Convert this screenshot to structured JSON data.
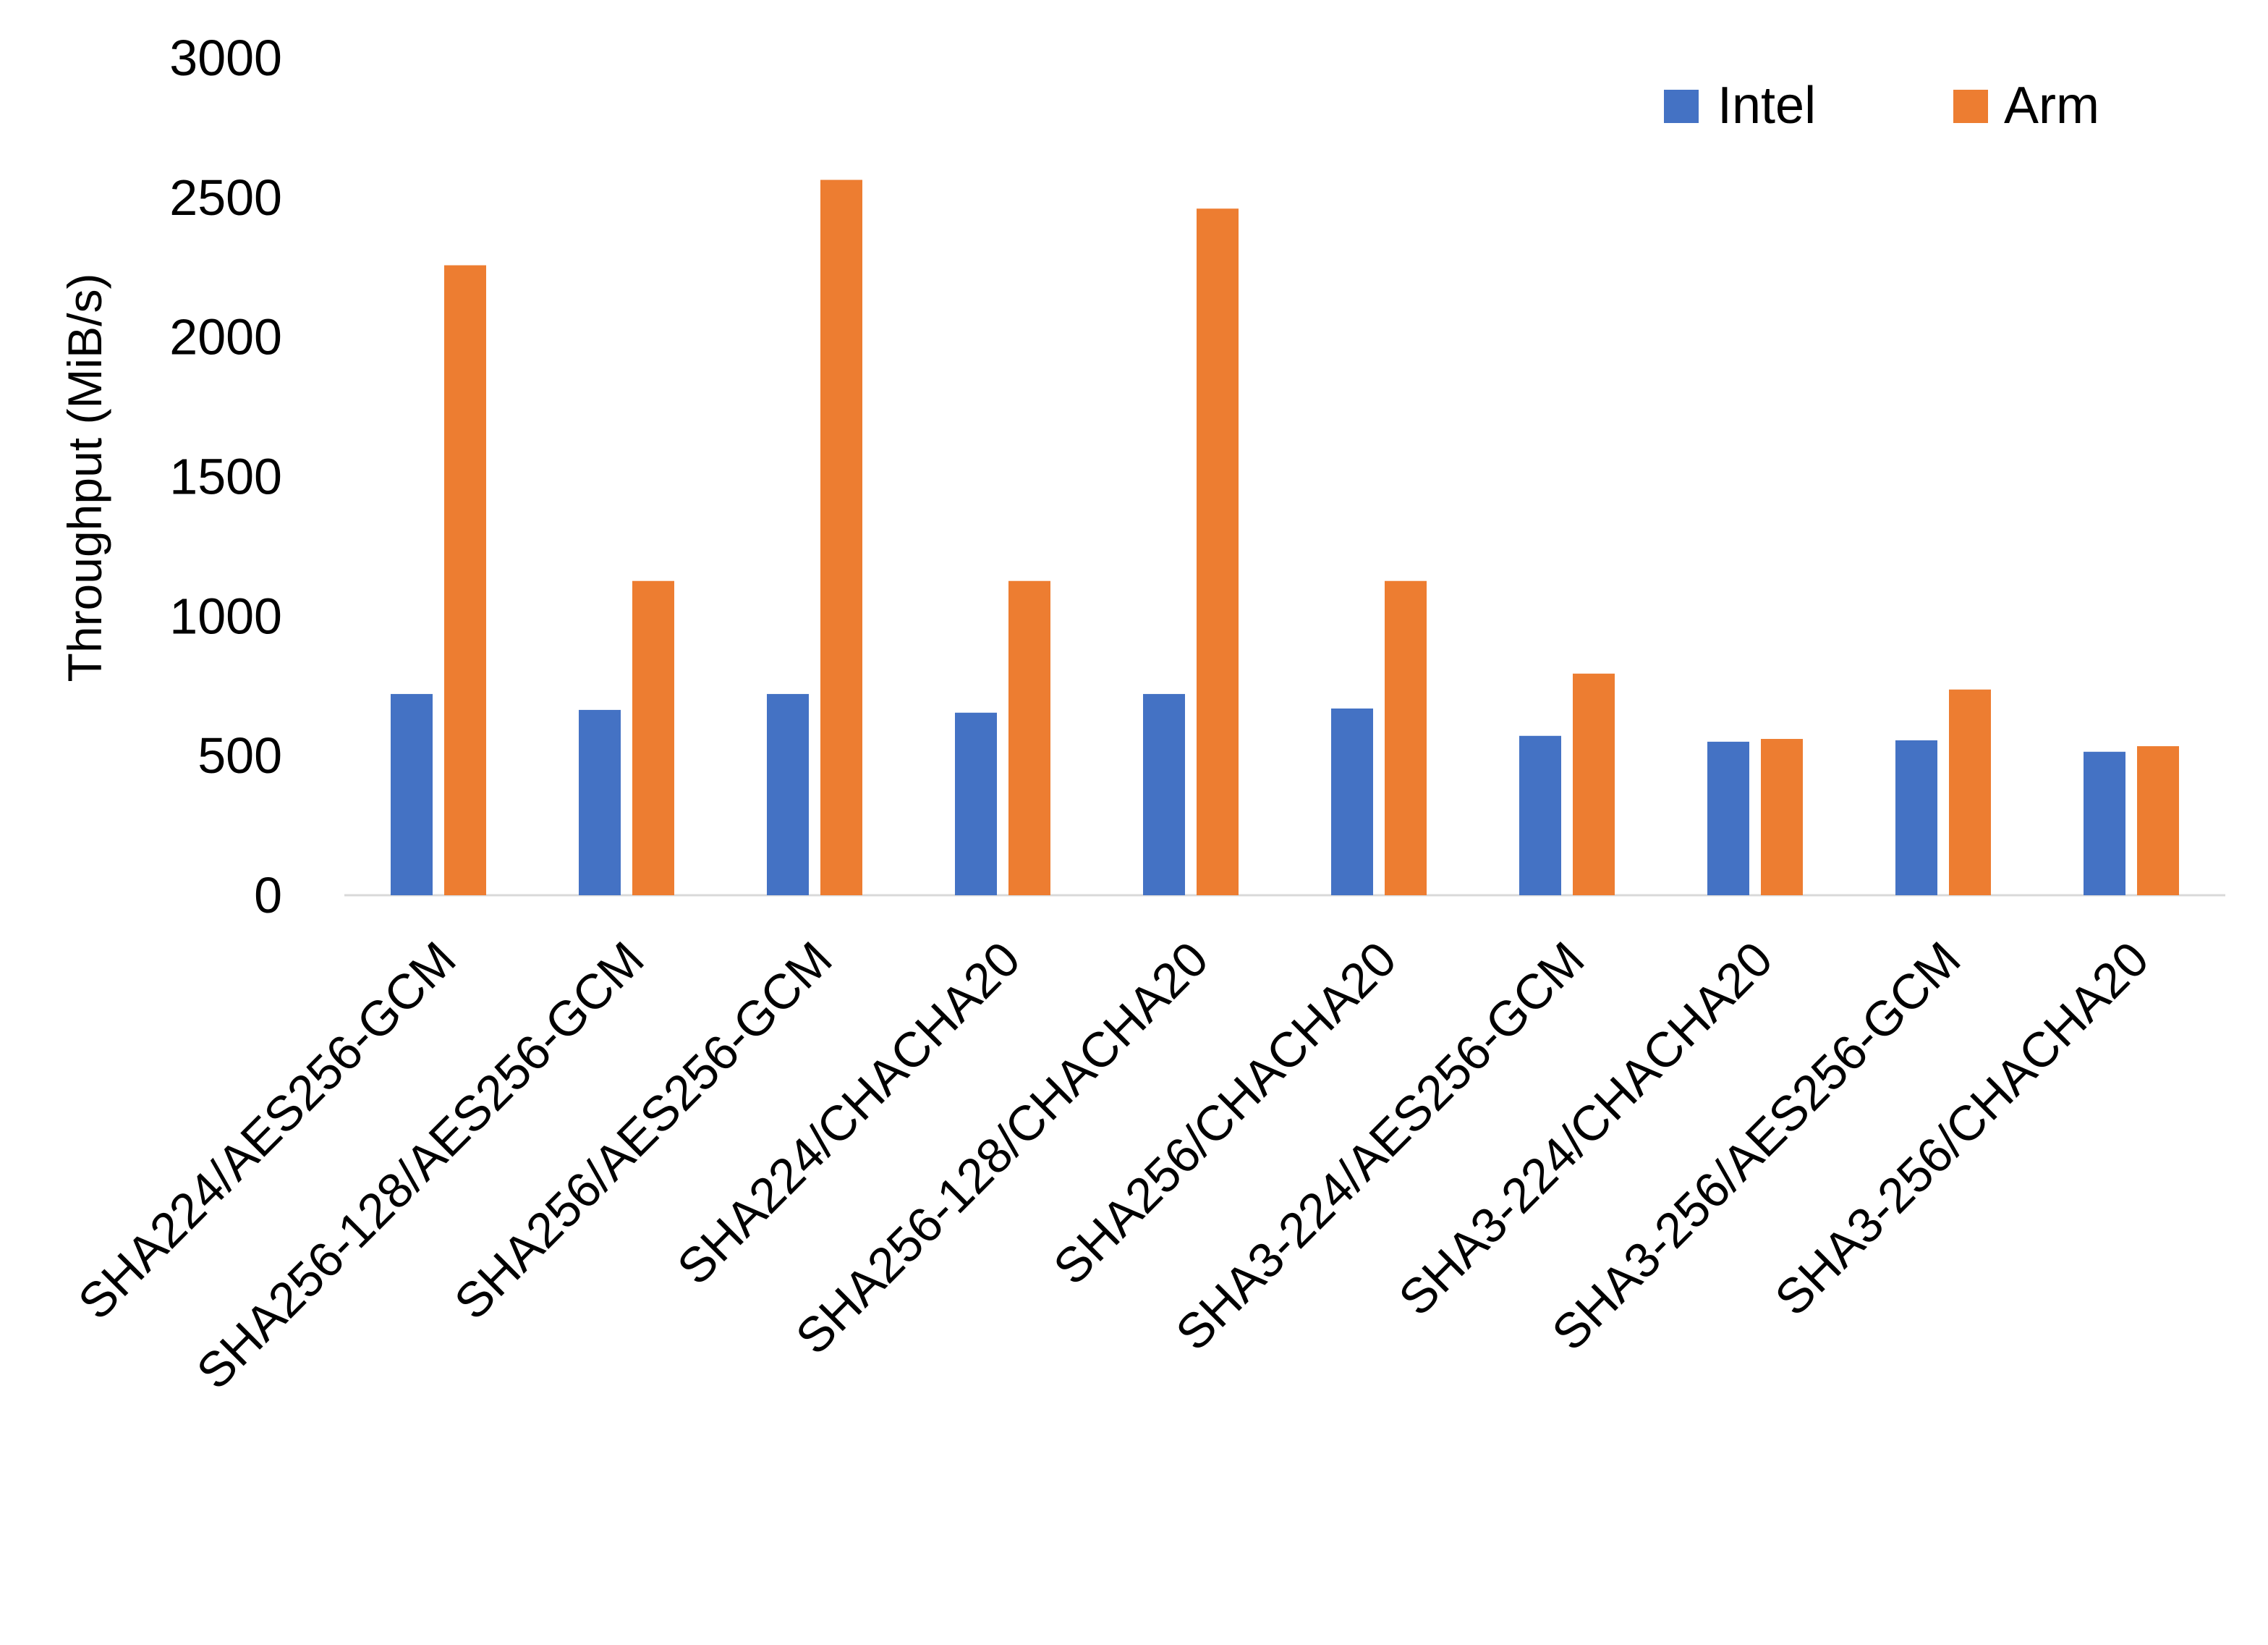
{
  "chart_data": {
    "type": "bar",
    "title": "",
    "xlabel": "",
    "ylabel": "Throughput (MiB/s)",
    "ylim": [
      0,
      3000
    ],
    "yticks": [
      "0",
      "500",
      "1000",
      "1500",
      "2000",
      "2500",
      "3000"
    ],
    "grid": false,
    "legend_position": "top-right",
    "categories": [
      "SHA224/AES256-GCM",
      "SHA256-128/AES256-GCM",
      "SHA256/AES256-GCM",
      "SHA224/CHACHA20",
      "SHA256-128/CHACHA20",
      "SHA256/CHACHA20",
      "SHA3-224/AES256-GCM",
      "SHA3-224/CHACHA20",
      "SHA3-256/AES256-GCM",
      "SHA3-256/CHACHA20"
    ],
    "series": [
      {
        "name": "Intel",
        "color": "#4472C4",
        "values": [
          721,
          664,
          721,
          654,
          721,
          669,
          571,
          550,
          555,
          514
        ]
      },
      {
        "name": "Arm",
        "color": "#ED7D31",
        "values": [
          2257,
          1126,
          2563,
          1126,
          2460,
          1126,
          794,
          560,
          737,
          534
        ]
      }
    ]
  }
}
